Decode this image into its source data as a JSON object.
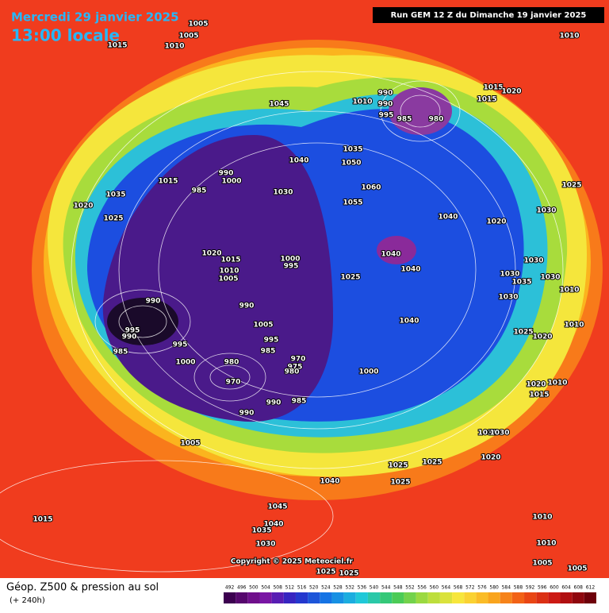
{
  "header": {
    "date": "Mercredi 29 janvier 2025",
    "time": "13:00 locale",
    "run": "Run GEM 12 Z du Dimanche 19 janvier 2025"
  },
  "footer": {
    "title": "Géop. Z500 & pression au sol",
    "lead": "(+ 240h)",
    "copyright": "Copyright © 2025 Meteociel.fr"
  },
  "scale": [
    492,
    496,
    500,
    504,
    508,
    512,
    516,
    520,
    524,
    528,
    532,
    536,
    540,
    544,
    548,
    552,
    556,
    560,
    564,
    568,
    572,
    576,
    580,
    584,
    588,
    592,
    596,
    600,
    604,
    608,
    612
  ],
  "pressure_labels": [
    1005,
    1005,
    1010,
    1015,
    1010,
    1045,
    990,
    990,
    1010,
    1015,
    1020,
    1015,
    995,
    985,
    980,
    1035,
    1050,
    1040,
    985,
    990,
    1000,
    1015,
    1030,
    1035,
    1020,
    1025,
    1060,
    1055,
    1040,
    1020,
    1030,
    1025,
    1020,
    1015,
    1010,
    1005,
    1000,
    995,
    1040,
    1040,
    1025,
    1030,
    1030,
    1035,
    1030,
    1010,
    1030,
    990,
    990,
    995,
    990,
    985,
    995,
    1000,
    1005,
    995,
    985,
    970,
    975,
    980,
    980,
    970,
    1040,
    1025,
    1020,
    1010,
    1000,
    985,
    990,
    990,
    1020,
    1010,
    1015,
    1030,
    1030,
    1005,
    1025,
    1025,
    1020,
    1040,
    1025,
    1045,
    1040,
    1035,
    1030,
    1015,
    1010,
    1010,
    1005,
    1005,
    1025,
    1025
  ]
}
